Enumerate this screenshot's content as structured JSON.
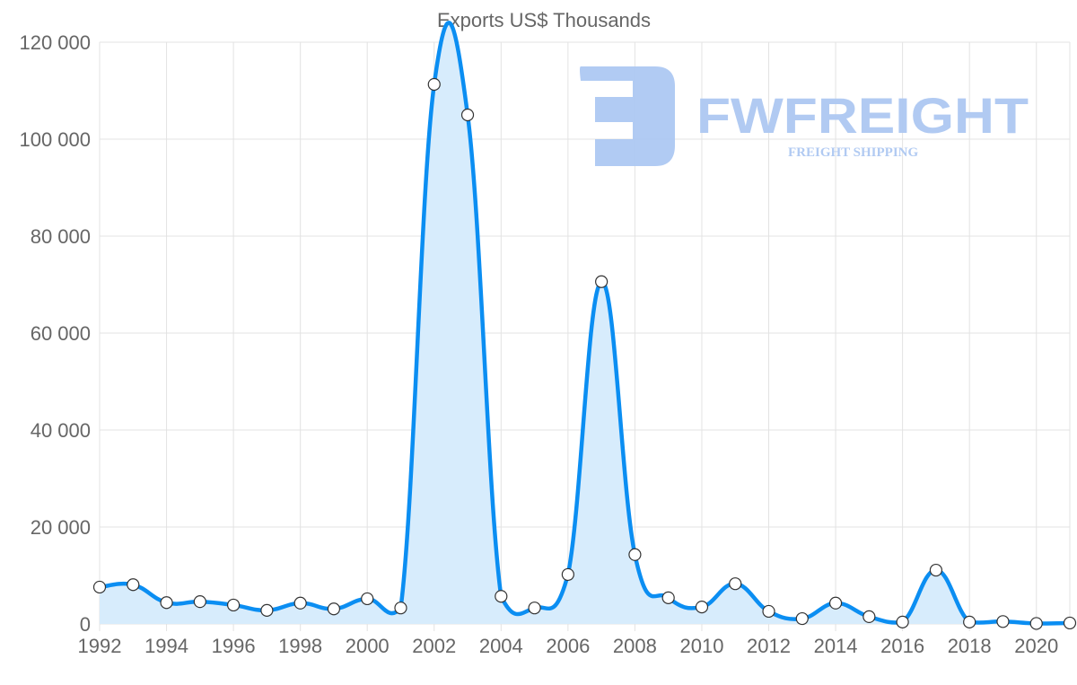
{
  "chart_data": {
    "type": "line",
    "title": "Exports US$ Thousands",
    "xlabel": "",
    "ylabel": "",
    "x": [
      1992,
      1993,
      1994,
      1995,
      1996,
      1997,
      1998,
      1999,
      2000,
      2001,
      2002,
      2003,
      2004,
      2005,
      2006,
      2007,
      2008,
      2009,
      2010,
      2011,
      2012,
      2013,
      2014,
      2015,
      2016,
      2017,
      2018,
      2019,
      2020,
      2021
    ],
    "series": [
      {
        "name": "Exports US$ Thousands",
        "values": [
          7600,
          8100,
          4400,
          4600,
          3900,
          2800,
          4300,
          3100,
          5200,
          3300,
          111300,
          105000,
          5700,
          3300,
          10200,
          70600,
          14300,
          5400,
          3500,
          8300,
          2600,
          1100,
          4300,
          1500,
          400,
          11100,
          400,
          500,
          100,
          200
        ]
      }
    ],
    "ylim": [
      0,
      120000
    ],
    "yticks": [
      0,
      20000,
      40000,
      60000,
      80000,
      100000,
      120000
    ],
    "ytick_labels": [
      "0",
      "20 000",
      "40 000",
      "60 000",
      "80 000",
      "100 000",
      "120 000"
    ],
    "xticks": [
      1992,
      1994,
      1996,
      1998,
      2000,
      2002,
      2004,
      2006,
      2008,
      2010,
      2012,
      2014,
      2016,
      2018,
      2020
    ],
    "xtick_labels": [
      "1992",
      "1994",
      "1996",
      "1998",
      "2000",
      "2002",
      "2004",
      "2006",
      "2008",
      "2010",
      "2012",
      "2014",
      "2016",
      "2018",
      "2020"
    ],
    "grid": true,
    "colors": {
      "line": "#0b8ef2",
      "fill": "#d7ecfc",
      "marker_fill": "#ffffff",
      "marker_stroke": "#333333"
    }
  },
  "watermark": {
    "brand": "FWFREIGHT",
    "tagline": "FREIGHT SHIPPING",
    "color": "#adc8f2"
  }
}
